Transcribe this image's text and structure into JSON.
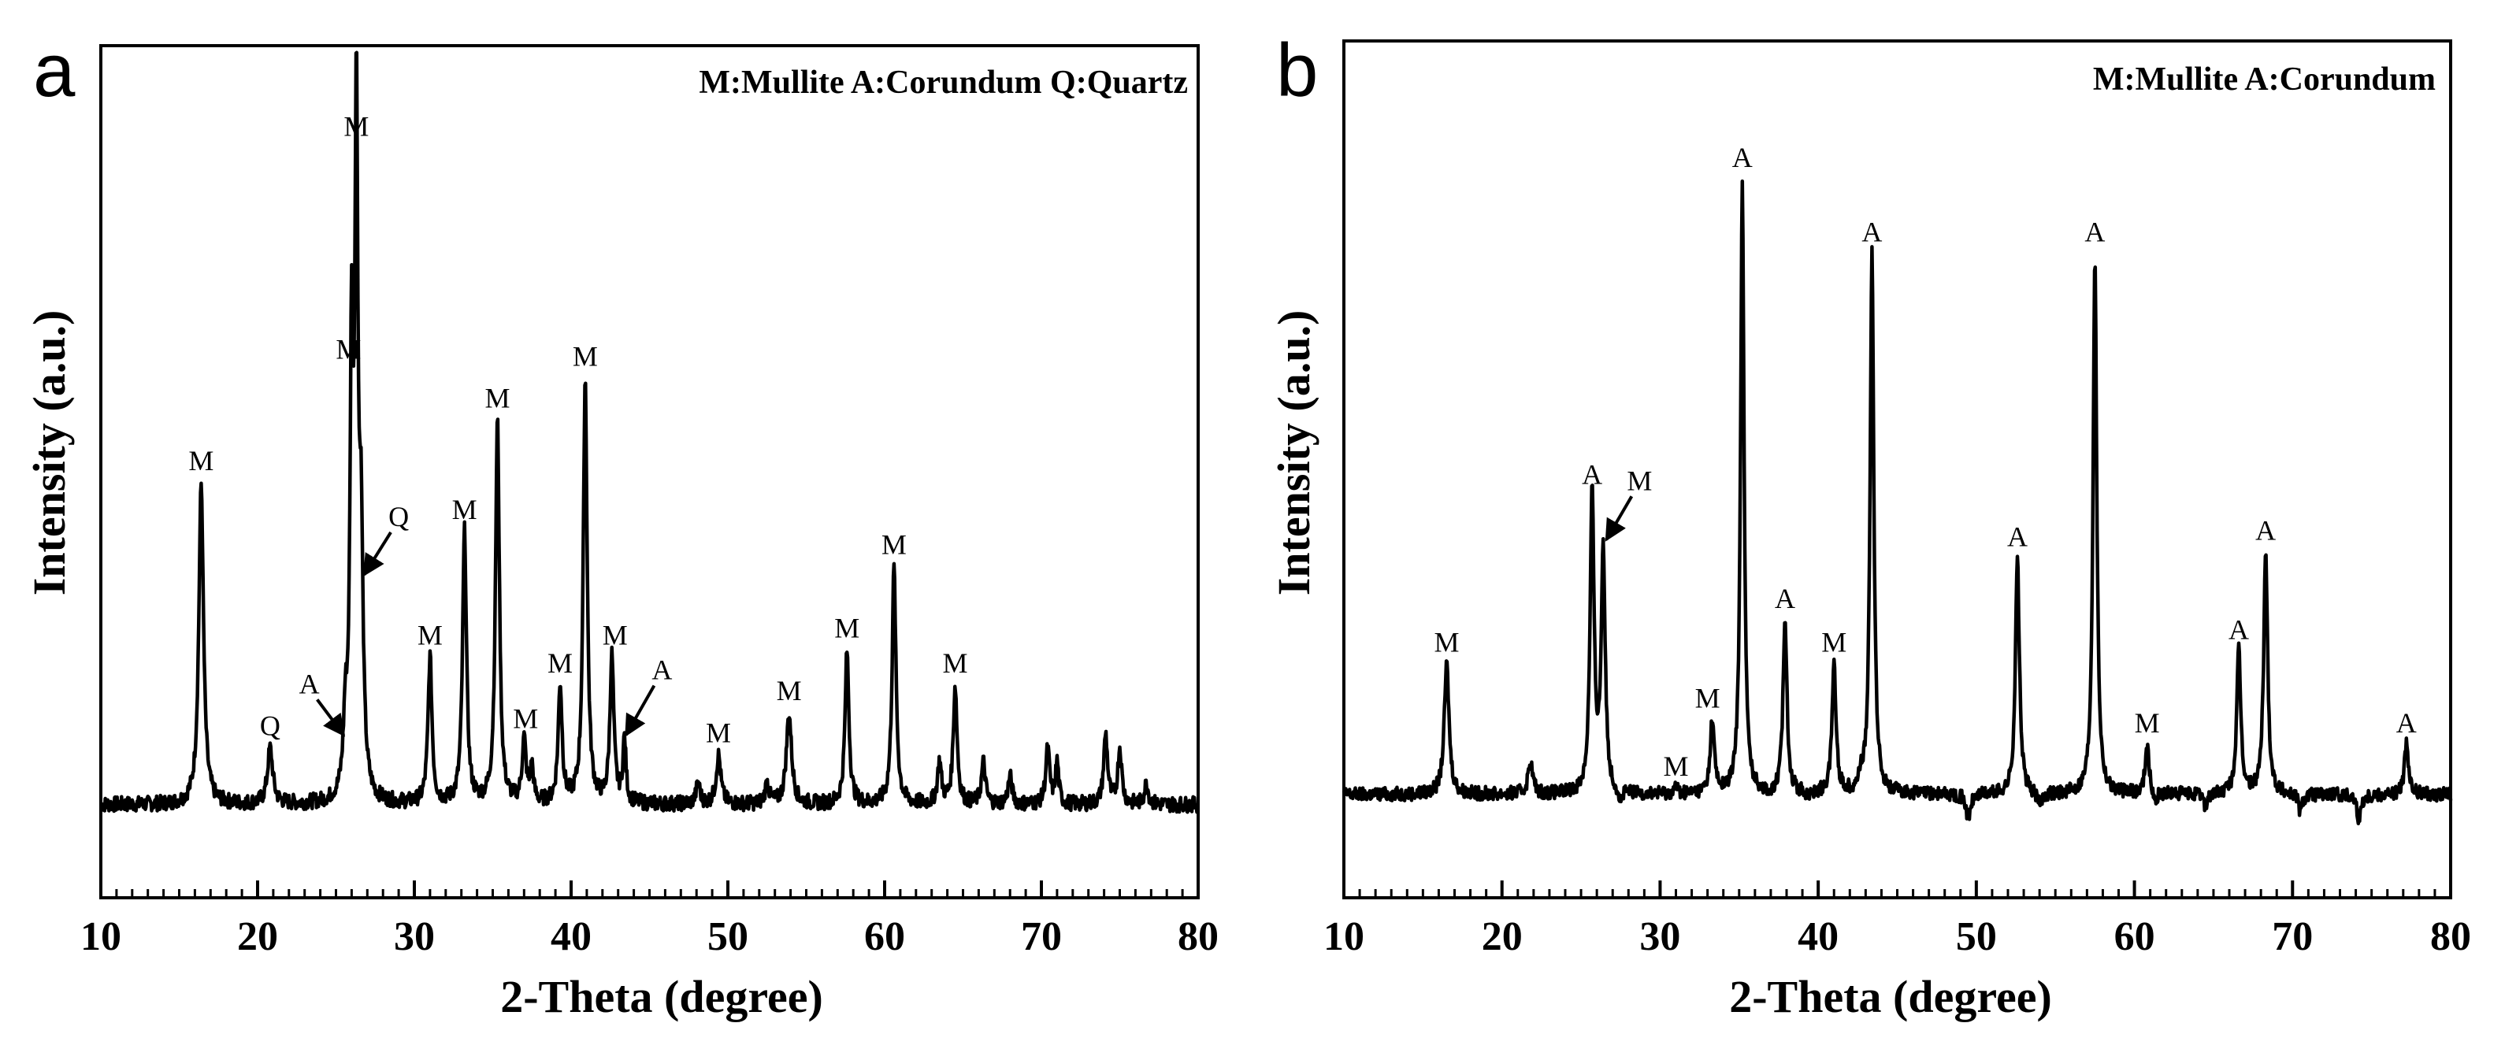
{
  "chart_data": [
    {
      "type": "line",
      "panel_label": "a",
      "title": "",
      "xlabel": "2-Theta (degree)",
      "ylabel": "Intensity (a.u.)",
      "xlim": [
        10,
        80
      ],
      "ylim": [
        0,
        100
      ],
      "xticks": [
        10,
        20,
        30,
        40,
        50,
        60,
        70,
        80
      ],
      "legend_text": "M:Mullite  A:Corundum  Q:Quartz",
      "baseline": 6,
      "peaks": [
        {
          "x": 16.4,
          "y": 52,
          "w": 0.18
        },
        {
          "x": 20.8,
          "y": 14,
          "w": 0.2
        },
        {
          "x": 25.6,
          "y": 16,
          "w": 0.15
        },
        {
          "x": 26.0,
          "y": 68,
          "w": 0.12
        },
        {
          "x": 26.3,
          "y": 100,
          "w": 0.12
        },
        {
          "x": 26.6,
          "y": 41,
          "w": 0.15
        },
        {
          "x": 31.0,
          "y": 27,
          "w": 0.15
        },
        {
          "x": 33.2,
          "y": 45,
          "w": 0.15
        },
        {
          "x": 35.3,
          "y": 61,
          "w": 0.15
        },
        {
          "x": 37.0,
          "y": 15,
          "w": 0.15
        },
        {
          "x": 37.5,
          "y": 11,
          "w": 0.12
        },
        {
          "x": 39.3,
          "y": 23,
          "w": 0.15
        },
        {
          "x": 40.9,
          "y": 67,
          "w": 0.15
        },
        {
          "x": 42.6,
          "y": 27,
          "w": 0.15
        },
        {
          "x": 43.4,
          "y": 15,
          "w": 0.12
        },
        {
          "x": 48.1,
          "y": 9,
          "w": 0.15
        },
        {
          "x": 49.4,
          "y": 13,
          "w": 0.18
        },
        {
          "x": 52.5,
          "y": 9,
          "w": 0.15
        },
        {
          "x": 53.9,
          "y": 19,
          "w": 0.2
        },
        {
          "x": 57.6,
          "y": 28,
          "w": 0.15
        },
        {
          "x": 60.6,
          "y": 40,
          "w": 0.15
        },
        {
          "x": 63.5,
          "y": 12,
          "w": 0.15
        },
        {
          "x": 64.5,
          "y": 23,
          "w": 0.15
        },
        {
          "x": 66.3,
          "y": 12,
          "w": 0.15
        },
        {
          "x": 68.0,
          "y": 10,
          "w": 0.15
        },
        {
          "x": 70.4,
          "y": 14,
          "w": 0.15
        },
        {
          "x": 71.0,
          "y": 12,
          "w": 0.12
        },
        {
          "x": 74.1,
          "y": 16,
          "w": 0.15
        },
        {
          "x": 75.0,
          "y": 14,
          "w": 0.15
        },
        {
          "x": 76.7,
          "y": 9,
          "w": 0.15
        }
      ],
      "annotations": [
        {
          "text": "M",
          "x": 16.4,
          "y": 54
        },
        {
          "text": "Q",
          "x": 20.8,
          "y": 16
        },
        {
          "text": "M",
          "x": 25.8,
          "y": 70
        },
        {
          "text": "M",
          "x": 26.3,
          "y": 102
        },
        {
          "text": "M",
          "x": 31.0,
          "y": 29
        },
        {
          "text": "M",
          "x": 33.2,
          "y": 47
        },
        {
          "text": "M",
          "x": 35.3,
          "y": 63
        },
        {
          "text": "M",
          "x": 37.1,
          "y": 17
        },
        {
          "text": "M",
          "x": 39.3,
          "y": 25
        },
        {
          "text": "M",
          "x": 40.9,
          "y": 69
        },
        {
          "text": "M",
          "x": 42.8,
          "y": 29
        },
        {
          "text": "M",
          "x": 49.4,
          "y": 15
        },
        {
          "text": "M",
          "x": 53.9,
          "y": 21
        },
        {
          "text": "M",
          "x": 57.6,
          "y": 30
        },
        {
          "text": "M",
          "x": 60.6,
          "y": 42
        },
        {
          "text": "M",
          "x": 64.5,
          "y": 25
        }
      ],
      "arrows": [
        {
          "text": "A",
          "label_x": 23.3,
          "label_y": 22,
          "tip_x": 25.5,
          "tip_y": 16
        },
        {
          "text": "Q",
          "label_x": 29.0,
          "label_y": 46,
          "tip_x": 26.8,
          "tip_y": 39
        },
        {
          "text": "A",
          "label_x": 45.8,
          "label_y": 24,
          "tip_x": 43.5,
          "tip_y": 16
        }
      ]
    },
    {
      "type": "line",
      "panel_label": "b",
      "title": "",
      "xlabel": "2-Theta (degree)",
      "ylabel": "Intensity (a.u.)",
      "xlim": [
        10,
        80
      ],
      "ylim": [
        0,
        100
      ],
      "xticks": [
        10,
        20,
        30,
        40,
        50,
        60,
        70,
        80
      ],
      "legend_text": "M:Mullite  A:Corundum",
      "baseline": 8,
      "peaks": [
        {
          "x": 16.5,
          "y": 29,
          "w": 0.18
        },
        {
          "x": 21.8,
          "y": 13,
          "w": 0.18
        },
        {
          "x": 25.7,
          "y": 56,
          "w": 0.15
        },
        {
          "x": 26.4,
          "y": 47,
          "w": 0.15
        },
        {
          "x": 27.5,
          "y": 6,
          "w": 0.15
        },
        {
          "x": 31.0,
          "y": 9,
          "w": 0.15
        },
        {
          "x": 33.3,
          "y": 20,
          "w": 0.15
        },
        {
          "x": 35.2,
          "y": 107,
          "w": 0.13
        },
        {
          "x": 37.0,
          "y": 7,
          "w": 0.15
        },
        {
          "x": 37.9,
          "y": 36,
          "w": 0.15
        },
        {
          "x": 39.4,
          "y": 7,
          "w": 0.15
        },
        {
          "x": 41.0,
          "y": 29,
          "w": 0.15
        },
        {
          "x": 42.7,
          "y": 10,
          "w": 0.12
        },
        {
          "x": 43.4,
          "y": 95,
          "w": 0.14
        },
        {
          "x": 49.5,
          "y": 4,
          "w": 0.18
        },
        {
          "x": 52.6,
          "y": 46,
          "w": 0.15
        },
        {
          "x": 54.0,
          "y": 6,
          "w": 0.2
        },
        {
          "x": 57.5,
          "y": 95,
          "w": 0.14
        },
        {
          "x": 60.8,
          "y": 16,
          "w": 0.15
        },
        {
          "x": 61.3,
          "y": 6,
          "w": 0.12
        },
        {
          "x": 64.5,
          "y": 6,
          "w": 0.15
        },
        {
          "x": 66.6,
          "y": 31,
          "w": 0.15
        },
        {
          "x": 68.3,
          "y": 47,
          "w": 0.15
        },
        {
          "x": 70.5,
          "y": 5,
          "w": 0.15
        },
        {
          "x": 74.2,
          "y": 4,
          "w": 0.15
        },
        {
          "x": 77.2,
          "y": 16,
          "w": 0.15
        },
        {
          "x": 77.5,
          "y": 8,
          "w": 0.12
        }
      ],
      "annotations": [
        {
          "text": "M",
          "x": 16.5,
          "y": 31
        },
        {
          "text": "A",
          "x": 25.7,
          "y": 58
        },
        {
          "text": "M",
          "x": 31.0,
          "y": 11
        },
        {
          "text": "M",
          "x": 33.0,
          "y": 22
        },
        {
          "text": "A",
          "x": 35.2,
          "y": 109
        },
        {
          "text": "A",
          "x": 37.9,
          "y": 38
        },
        {
          "text": "M",
          "x": 41.0,
          "y": 31
        },
        {
          "text": "A",
          "x": 43.4,
          "y": 97
        },
        {
          "text": "A",
          "x": 52.6,
          "y": 48
        },
        {
          "text": "A",
          "x": 57.5,
          "y": 97
        },
        {
          "text": "M",
          "x": 60.8,
          "y": 18
        },
        {
          "text": "A",
          "x": 66.6,
          "y": 33
        },
        {
          "text": "A",
          "x": 68.3,
          "y": 49
        },
        {
          "text": "A",
          "x": 77.2,
          "y": 18
        }
      ],
      "arrows": [
        {
          "text": "M",
          "label_x": 28.7,
          "label_y": 57,
          "tip_x": 26.6,
          "tip_y": 49
        }
      ]
    }
  ]
}
